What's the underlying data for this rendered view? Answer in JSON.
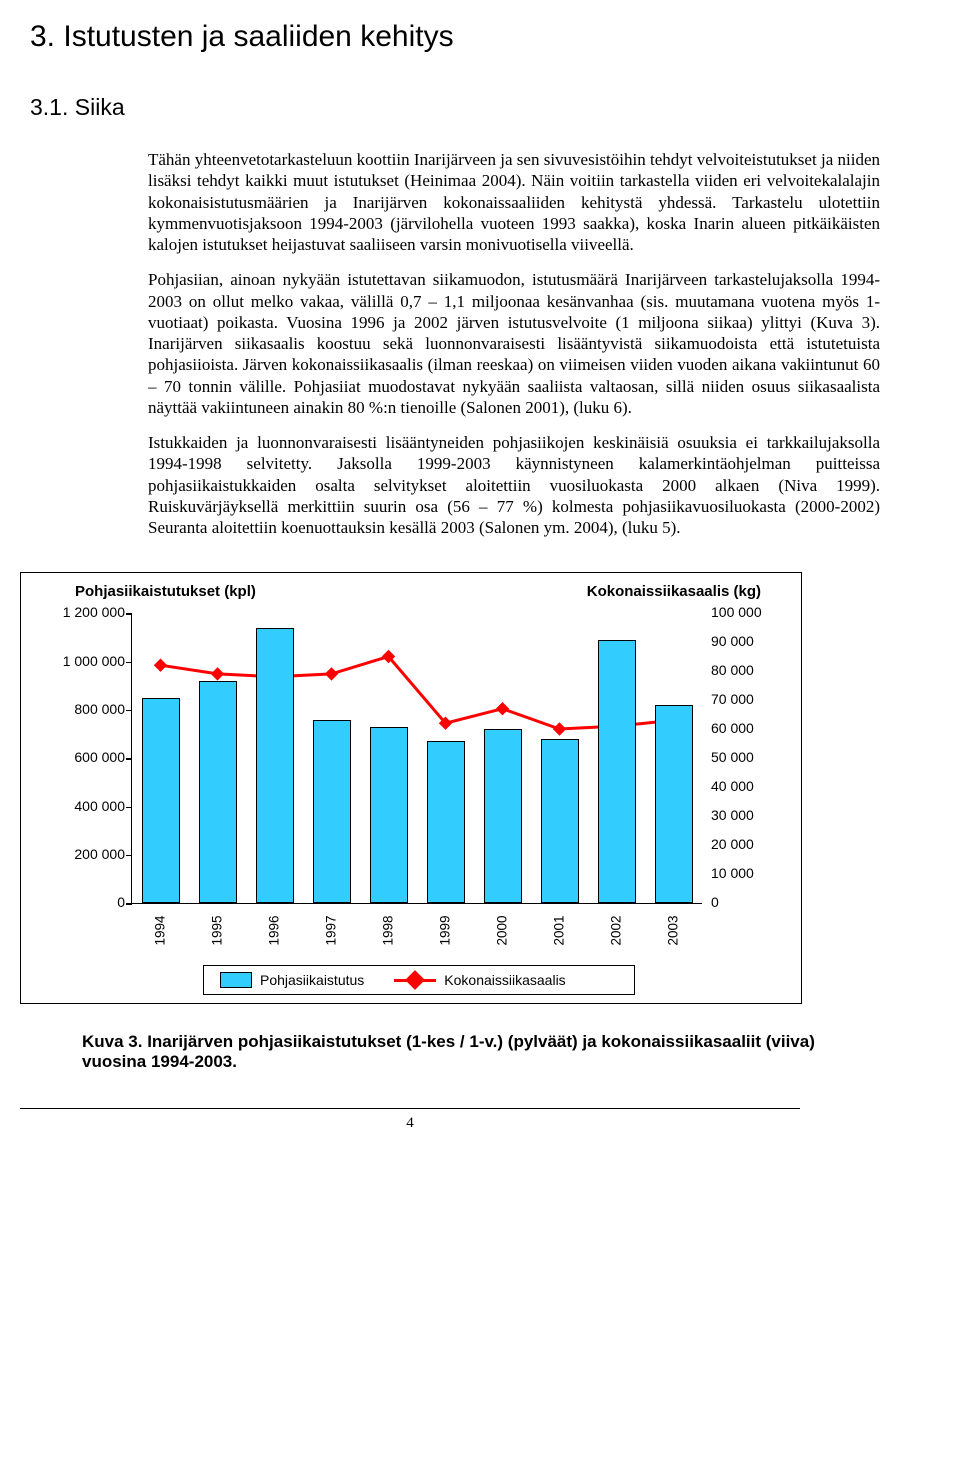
{
  "heading1": "3. Istutusten ja saaliiden kehitys",
  "heading2": "3.1. Siika",
  "para1": "Tähän yhteenvetotarkasteluun koottiin Inarijärveen ja sen sivuvesistöihin tehdyt velvoiteistutukset ja niiden lisäksi tehdyt kaikki muut istutukset (Heinimaa 2004). Näin voitiin tarkastella viiden eri velvoitekalalajin kokonaisistutusmäärien ja Inarijärven kokonaissaaliiden kehitystä yhdessä. Tarkastelu ulotettiin kymmenvuotisjaksoon 1994-2003 (järvilohella vuoteen 1993 saakka), koska Inarin alueen pitkäikäisten kalojen istutukset heijastuvat saaliiseen varsin monivuotisella viiveellä.",
  "para2": "Pohjasiian, ainoan nykyään istutettavan siikamuodon, istutusmäärä Inarijärveen tarkastelujaksolla 1994-2003 on ollut melko vakaa, välillä 0,7 – 1,1 miljoonaa kesänvanhaa (sis. muutamana vuotena myös 1-vuotiaat) poikasta. Vuosina 1996 ja 2002 järven istutusvelvoite (1 miljoona siikaa) ylittyi (Kuva 3). Inarijärven siikasaalis koostuu sekä luonnonvaraisesti lisääntyvistä siikamuodoista että istutetuista pohjasiioista. Järven kokonaissiikasaalis (ilman reeskaa) on viimeisen viiden vuoden aikana vakiintunut 60 – 70 tonnin välille. Pohjasiiat muodostavat nykyään saaliista valtaosan, sillä niiden osuus siikasaalista näyttää vakiintuneen ainakin 80 %:n tienoille (Salonen 2001), (luku 6).",
  "para3": "Istukkaiden ja luonnonvaraisesti lisääntyneiden pohjasiikojen keskinäisiä osuuksia ei tarkkailujaksolla 1994-1998 selvitetty. Jaksolla 1999-2003 käynnistyneen kalamerkintäohjelman puitteissa pohjasiikaistukkaiden osalta selvitykset aloitettiin vuosiluokasta 2000 alkaen (Niva 1999). Ruiskuvärjäyksellä merkittiin suurin osa (56 – 77 %) kolmesta pohjasiikavuosiluokasta (2000-2002) Seuranta aloitettiin koenuottauksin kesällä 2003 (Salonen ym. 2004), (luku 5).",
  "chart": {
    "left_title": "Pohjasiikaistutukset (kpl)",
    "right_title": "Kokonaissiikasaalis (kg)",
    "y_left": {
      "min": 0,
      "max": 1200000,
      "step": 200000,
      "labels": [
        "0",
        "200 000",
        "400 000",
        "600 000",
        "800 000",
        "1 000 000",
        "1 200 000"
      ]
    },
    "y_right": {
      "min": 0,
      "max": 100000,
      "step": 10000,
      "labels": [
        "0",
        "10 000",
        "20 000",
        "30 000",
        "40 000",
        "50 000",
        "60 000",
        "70 000",
        "80 000",
        "90 000",
        "100 000"
      ]
    },
    "years": [
      "1994",
      "1995",
      "1996",
      "1997",
      "1998",
      "1999",
      "2000",
      "2001",
      "2002",
      "2003"
    ],
    "bars": [
      850000,
      920000,
      1140000,
      760000,
      730000,
      670000,
      720000,
      680000,
      1090000,
      820000
    ],
    "bar_color": "#33ccff",
    "bar_border": "#000000",
    "line_values": [
      82000,
      79000,
      78000,
      79000,
      85000,
      62000,
      67000,
      60000,
      61000,
      63000
    ],
    "line_color": "#ff0000",
    "line_width": 3,
    "marker_size": 12,
    "background": "#ffffff",
    "legend": {
      "series1": "Pohjasiikaistutus",
      "series2": "Kokonaissiikasaalis"
    }
  },
  "caption": "Kuva 3. Inarijärven pohjasiikaistutukset (1-kes / 1-v.) (pylväät) ja kokonaissiikasaaliit (viiva) vuosina 1994-2003.",
  "page_number": "4"
}
